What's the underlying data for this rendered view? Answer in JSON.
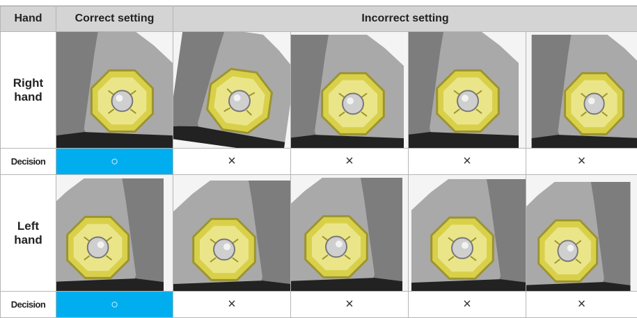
{
  "header": [
    "Hand",
    "Correct setting",
    "Incorrect setting"
  ],
  "rows": [
    {
      "hand": "Right hand",
      "decision_label": "Decision",
      "decisions": [
        "○",
        "×",
        "×",
        "×",
        "×"
      ]
    },
    {
      "hand": "Left hand",
      "decision_label": "Decision",
      "decisions": [
        "○",
        "×",
        "×",
        "×",
        "×"
      ]
    }
  ]
}
